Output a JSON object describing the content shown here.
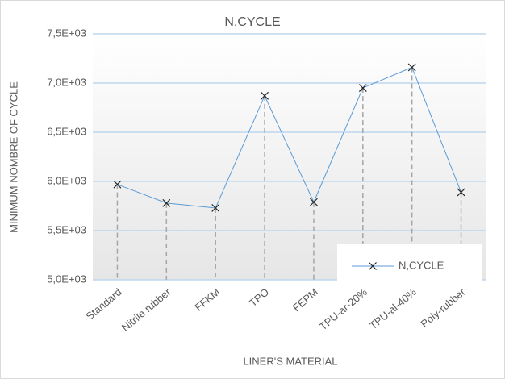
{
  "chart_data": {
    "type": "line",
    "title": "N,CYCLE",
    "x_label": "LINER'S MATERIAL",
    "y_label": "MINIMUM NOMBRE OF CYCLE",
    "categories": [
      "Standard",
      "Nitrile rubber",
      "FFKM",
      "TPO",
      "FEPM",
      "TPU-ar-20%",
      "TPU-al-40%",
      "Poly-rubber"
    ],
    "series": [
      {
        "name": "N,CYCLE",
        "color": "#5b9bd5",
        "values": [
          5970,
          5780,
          5730,
          6870,
          5790,
          6950,
          7160,
          5890
        ]
      }
    ],
    "ylim": [
      5000,
      7500
    ],
    "yticks": [
      {
        "value": 5000,
        "label": "5,0E+03"
      },
      {
        "value": 5500,
        "label": "5,5E+03"
      },
      {
        "value": 6000,
        "label": "6,0E+03"
      },
      {
        "value": 6500,
        "label": "6,5E+03"
      },
      {
        "value": 7000,
        "label": "7,0E+03"
      },
      {
        "value": 7500,
        "label": "7,5E+03"
      }
    ],
    "grid": true,
    "drop_lines": true,
    "legend": "lower right"
  }
}
